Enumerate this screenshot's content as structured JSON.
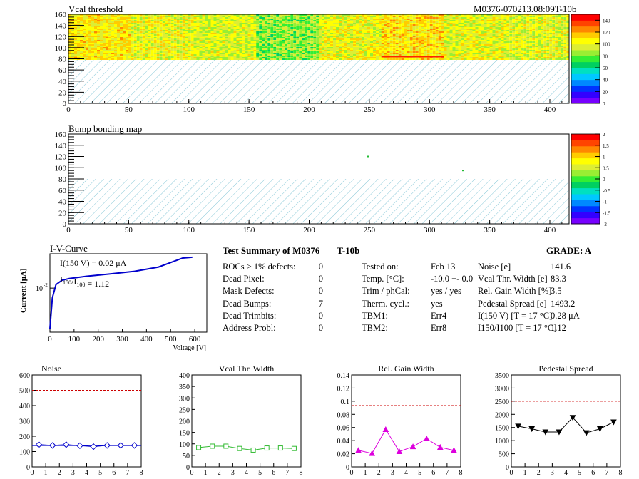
{
  "header": {
    "left_title": "Vcal threshold",
    "right_title": "M0376-070213.08:09T-10b"
  },
  "colors": {
    "palette": [
      "#7700ff",
      "#3300ff",
      "#0033ff",
      "#0088ff",
      "#00c8ff",
      "#00e0c0",
      "#00d060",
      "#33ee33",
      "#99ee33",
      "#ddee33",
      "#ffff00",
      "#ffcc00",
      "#ff8800",
      "#ff4400",
      "#ff0000"
    ],
    "accent_blue": "#0000cc",
    "limit_red": "#cc0000",
    "green_marker": "#33bb33",
    "magenta_marker": "#dd00dd",
    "hatch": "#88c8d8"
  },
  "chart_data": [
    {
      "id": "vcal",
      "type": "heatmap",
      "title": "Vcal threshold",
      "xlim": [
        0,
        416
      ],
      "ylim": [
        0,
        160
      ],
      "x_ticks": [
        0,
        50,
        100,
        150,
        200,
        250,
        300,
        350,
        400
      ],
      "y_ticks": [
        0,
        20,
        40,
        60,
        80,
        100,
        120,
        140,
        160
      ],
      "data_rows": [
        80,
        160
      ],
      "empty_rows": [
        0,
        80
      ],
      "roc_boundaries": [
        52,
        104,
        156,
        208,
        260,
        312,
        364
      ],
      "roc_mean_level": [
        0.72,
        0.68,
        0.65,
        0.55,
        0.68,
        0.74,
        0.67,
        0.66
      ],
      "colorbar": {
        "min": 0,
        "max": 150,
        "ticks": [
          0,
          20,
          40,
          60,
          80,
          100,
          120,
          140
        ]
      }
    },
    {
      "id": "bump",
      "type": "heatmap",
      "title": "Bump bonding map",
      "xlim": [
        0,
        416
      ],
      "ylim": [
        0,
        160
      ],
      "x_ticks": [
        0,
        50,
        100,
        150,
        200,
        250,
        300,
        350,
        400
      ],
      "y_ticks": [
        0,
        20,
        40,
        60,
        80,
        100,
        120,
        140,
        160
      ],
      "data_rows": [
        80,
        160
      ],
      "empty_rows": [
        0,
        80
      ],
      "points": [
        [
          249,
          120
        ],
        [
          328,
          95
        ]
      ],
      "colorbar": {
        "min": -2,
        "max": 2,
        "ticks": [
          "2",
          "1.5",
          "1",
          "0.5",
          "0",
          "-0.5",
          "-1",
          "-1.5",
          "-2"
        ]
      }
    },
    {
      "id": "iv",
      "type": "line",
      "title": "I-V-Curve",
      "xlabel": "Voltage [V]",
      "ylabel": "Current [μA]",
      "y_tick_label": "10",
      "y_tick_exp": "-2",
      "xlim": [
        0,
        650
      ],
      "x_ticks": [
        0,
        100,
        200,
        300,
        400,
        500,
        600
      ],
      "x": [
        0,
        10,
        25,
        50,
        80,
        150,
        250,
        350,
        450,
        500,
        550,
        590
      ],
      "y": [
        0.0012,
        0.006,
        0.012,
        0.015,
        0.0165,
        0.0185,
        0.021,
        0.024,
        0.03,
        0.038,
        0.048,
        0.05
      ],
      "log_range": [
        0.001,
        0.06
      ],
      "annotations": {
        "i150": "I(150 V) = 0.02 μA",
        "ratio_prefix": "I",
        "ratio_sub1": "150",
        "ratio_mid": "/I",
        "ratio_sub2": "100",
        "ratio_value": " = 1.12"
      }
    },
    {
      "id": "noise",
      "type": "line",
      "title": "Noise",
      "xlim": [
        0,
        8
      ],
      "ylim": [
        0,
        600
      ],
      "x_ticks": [
        0,
        1,
        2,
        3,
        4,
        5,
        6,
        7,
        8
      ],
      "y_ticks": [
        "0",
        "100",
        "200",
        "300",
        "400",
        "500",
        "600"
      ],
      "limit": 500,
      "x": [
        0.5,
        1.5,
        2.5,
        3.5,
        4.5,
        5.5,
        6.5,
        7.5
      ],
      "y": [
        145,
        140,
        145,
        138,
        132,
        140,
        140,
        140
      ],
      "marker": "diamond",
      "color": "#0000cc"
    },
    {
      "id": "vcalw",
      "type": "line",
      "title": "Vcal Thr. Width",
      "xlim": [
        0,
        8
      ],
      "ylim": [
        0,
        400
      ],
      "x_ticks": [
        0,
        1,
        2,
        3,
        4,
        5,
        6,
        7,
        8
      ],
      "y_ticks": [
        "0",
        "50",
        "100",
        "150",
        "200",
        "250",
        "300",
        "350",
        "400"
      ],
      "limit": 200,
      "x": [
        0.5,
        1.5,
        2.5,
        3.5,
        4.5,
        5.5,
        6.5,
        7.5
      ],
      "y": [
        84,
        90,
        90,
        80,
        73,
        82,
        82,
        80
      ],
      "marker": "square",
      "color": "#33bb33"
    },
    {
      "id": "gain",
      "type": "line",
      "title": "Rel. Gain Width",
      "xlim": [
        0,
        8
      ],
      "ylim": [
        0,
        0.15
      ],
      "x_ticks": [
        0,
        1,
        2,
        3,
        4,
        5,
        6,
        7,
        8
      ],
      "y_ticks": [
        "0",
        "0.02",
        "0.04",
        "0.06",
        "0.08",
        "0.1",
        "0.12",
        "0.14"
      ],
      "limit": 0.1,
      "x": [
        0.5,
        1.5,
        2.5,
        3.5,
        4.5,
        5.5,
        6.5,
        7.5
      ],
      "y": [
        0.027,
        0.022,
        0.061,
        0.025,
        0.033,
        0.046,
        0.032,
        0.027
      ],
      "marker": "triangle",
      "color": "#dd00dd"
    },
    {
      "id": "ped",
      "type": "line",
      "title": "Pedestal Spread",
      "xlim": [
        0,
        8
      ],
      "ylim": [
        0,
        3500
      ],
      "x_ticks": [
        0,
        1,
        2,
        3,
        4,
        5,
        6,
        7,
        8
      ],
      "y_ticks": [
        "0",
        "500",
        "1000",
        "1500",
        "2000",
        "2500",
        "3000",
        "3500"
      ],
      "limit": 2500,
      "x": [
        0.5,
        1.5,
        2.5,
        3.5,
        4.5,
        5.5,
        6.5,
        7.5
      ],
      "y": [
        1550,
        1450,
        1330,
        1330,
        1880,
        1300,
        1450,
        1710
      ],
      "marker": "triangle-down",
      "color": "#000000"
    }
  ],
  "summary": {
    "title": "Test Summary of M0376",
    "title_suffix": "T-10b",
    "grade": "GRADE:  A",
    "left_rows": [
      {
        "label": "ROCs > 1% defects:",
        "value": "0"
      },
      {
        "label": "Dead Pixel:",
        "value": "0"
      },
      {
        "label": "Mask Defects:",
        "value": "0"
      },
      {
        "label": "Dead Bumps:",
        "value": "7"
      },
      {
        "label": "Dead Trimbits:",
        "value": "0"
      },
      {
        "label": "Address Probl:",
        "value": "0"
      }
    ],
    "mid_rows": [
      {
        "label": "Tested on:",
        "value": "Feb 13"
      },
      {
        "label": "Temp. [°C]:",
        "value": "-10.0 +- 0.0"
      },
      {
        "label": "Trim / phCal:",
        "value": "yes / yes"
      },
      {
        "label": "Therm. cycl.:",
        "value": "yes"
      },
      {
        "label": "TBM1:",
        "value": "Err4"
      },
      {
        "label": "TBM2:",
        "value": "Err8"
      }
    ],
    "right_rows": [
      {
        "label": "Noise [e]",
        "value": "141.6"
      },
      {
        "label": "Vcal Thr. Width [e]",
        "value": "83.3"
      },
      {
        "label": "Rel. Gain Width [%]",
        "value": "3.5"
      },
      {
        "label": "Pedestal Spread [e]",
        "value": "1493.2"
      },
      {
        "label": "I(150 V) [T = 17 °C]",
        "value": "0.28 μA"
      },
      {
        "label": "I150/I100  [T = 17 °C]",
        "value": "1.12"
      }
    ]
  }
}
